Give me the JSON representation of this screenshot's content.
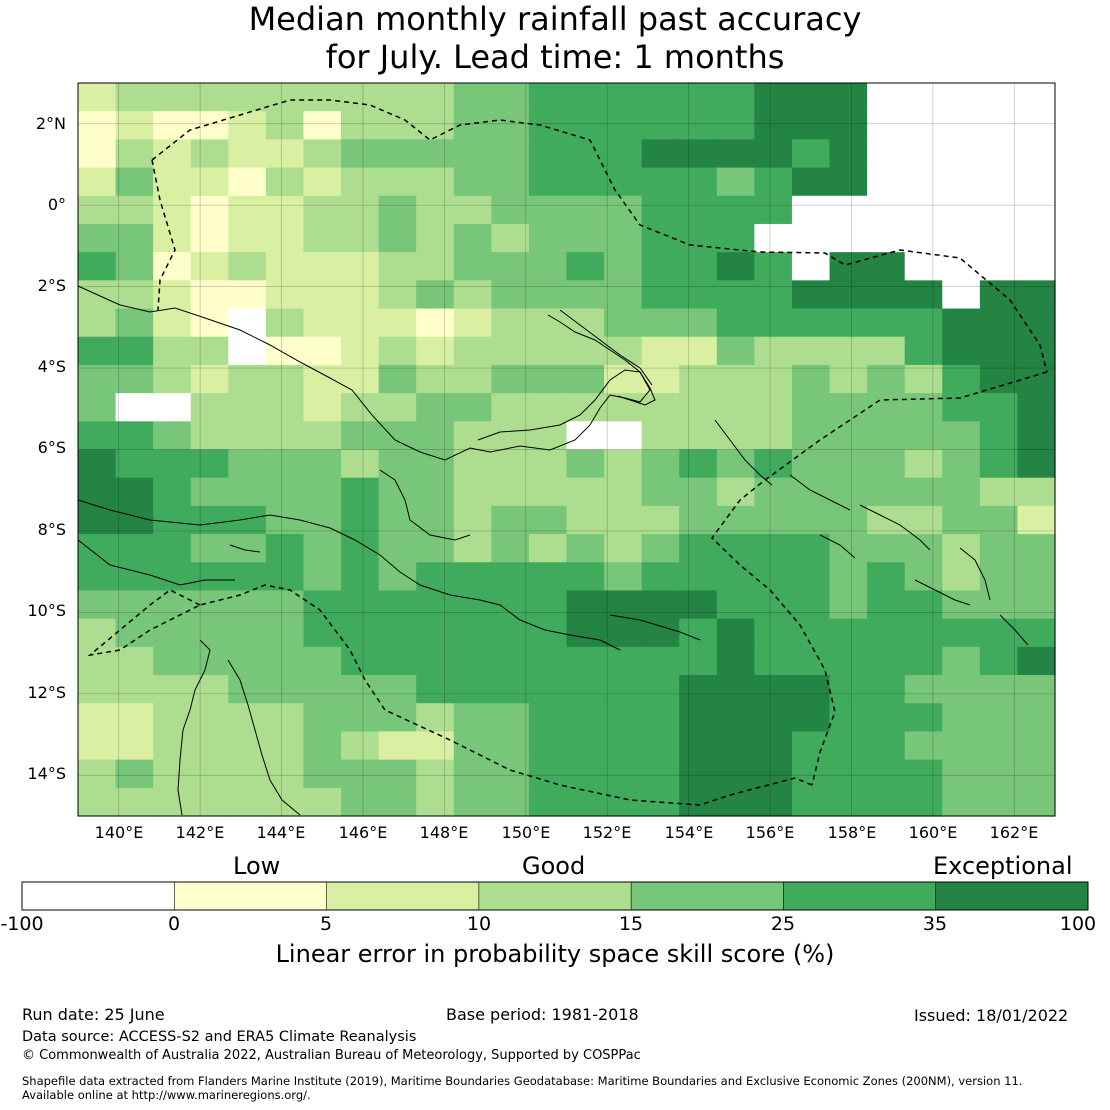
{
  "title": {
    "line1": "Median monthly rainfall past accuracy",
    "line2": "for July. Lead time: 1 months"
  },
  "axes": {
    "lat_ticks": [
      "2°N",
      "0°",
      "2°S",
      "4°S",
      "6°S",
      "8°S",
      "10°S",
      "12°S",
      "14°S"
    ],
    "lon_ticks": [
      "140°E",
      "142°E",
      "144°E",
      "146°E",
      "148°E",
      "150°E",
      "152°E",
      "154°E",
      "156°E",
      "158°E",
      "160°E",
      "162°E"
    ]
  },
  "colorbar": {
    "categories": [
      "Low",
      "Good",
      "Exceptional"
    ],
    "ticks": [
      "-100",
      "0",
      "5",
      "10",
      "15",
      "25",
      "35",
      "100"
    ],
    "colors": [
      "#ffffff",
      "#ffffcc",
      "#d9f0a3",
      "#addd8e",
      "#78c679",
      "#41ab5d",
      "#238443"
    ],
    "label": "Linear error in probability space skill score (%)"
  },
  "footer": {
    "run_date": "Run date: 25 June",
    "base_period": "Base period: 1981-2018",
    "issued": "Issued: 18/01/2022",
    "data_source": "Data source: ACCESS-S2 and ERA5 Climate Reanalysis",
    "copyright": "© Commonwealth of Australia 2022, Australian Bureau of Meteorology, Supported by COSPPac",
    "shapefile_line1": "Shapefile data extracted from Flanders Marine Institute (2019), Maritime Boundaries Geodatabase: Maritime Boundaries and Exclusive Economic Zones (200NM), version 11.",
    "shapefile_line2": "Available online at http://www.marineregions.org/."
  },
  "map_data": {
    "lon_min": 139.0,
    "lon_max": 163.0,
    "lat_min": -15.0,
    "lat_max": 3.0,
    "cell_deg": 0.8333,
    "grid_rows_north_to_south": [
      "23333333334455555566677777",
      "12112313334455555566677777",
      "13232234444455566665677777",
      "24221323334455555456677777",
      "33212233433444455557777777",
      "44212233434344455577777777",
      "54123222334445455657667777",
      "33211222343444455556666766",
      "34210322212333444555555666",
      "55330112323333322433335666",
      "44323322433444223334343566",
      "40033323344333333334444556",
      "55433334443330033334444456",
      "65554443443334345454443456",
      "66544445443333344344444433",
      "66555445443443334444433442",
      "55544545443434345555444344",
      "55555545455555455555454344",
      "44444455555556666555455444",
      "34444455555556665655555555",
      "33444445555555555655555456",
      "33334444455555556666554444",
      "22333344434455556666555444",
      "22333343224455556665554444",
      "34333344434455556665555444",
      "33333334434455556665555444"
    ]
  }
}
